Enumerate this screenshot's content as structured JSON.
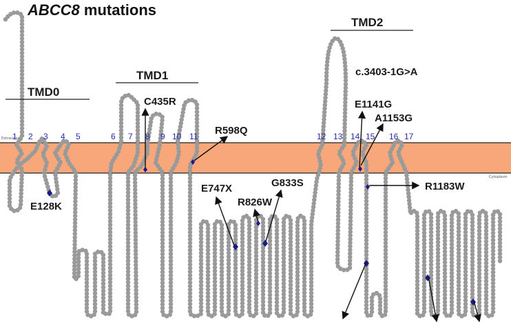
{
  "title": {
    "gene": "ABCC8",
    "suffix": "mutations"
  },
  "domains": [
    "TMD0",
    "TMD1",
    "TMD2"
  ],
  "helix_numbers": [
    "1",
    "2",
    "3",
    "4",
    "5",
    "6",
    "7",
    "8",
    "9",
    "10",
    "11",
    "12",
    "13",
    "14",
    "15",
    "16",
    "17"
  ],
  "membrane_labels": {
    "outside": "Extracellular",
    "inside": "Cytoplasm"
  },
  "mutations": [
    "E128K",
    "C435R",
    "R598Q",
    "E747X",
    "R826W",
    "G833S",
    "c.3403-1G>A",
    "E1141G",
    "A1153G",
    "R1183W"
  ],
  "colors": {
    "membrane": "#f7a77a",
    "residue_stroke": "#9a9a9a",
    "mutation": "#1a1a8c",
    "helix_number": "#2a2aa8"
  }
}
